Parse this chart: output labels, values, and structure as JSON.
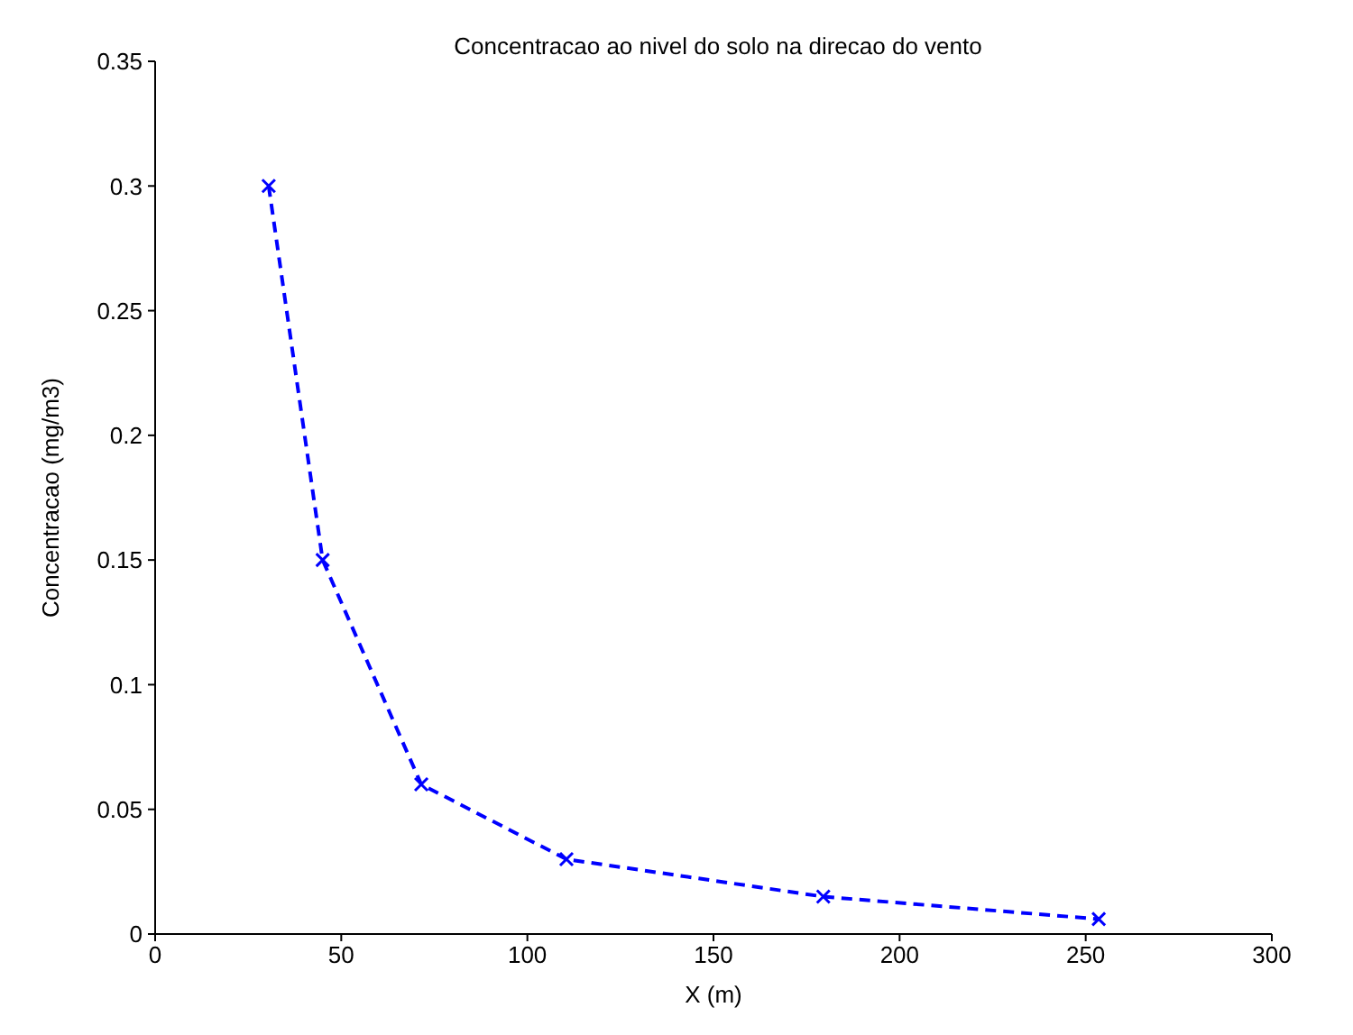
{
  "chart_data": {
    "type": "line",
    "title": "Concentracao ao nivel do solo na direcao do vento",
    "xlabel": "X (m)",
    "ylabel": "Concentracao (mg/m3)",
    "x": [
      30.5,
      45,
      71.5,
      110.5,
      179.5,
      253.5
    ],
    "series": [
      {
        "color": "#0000ff",
        "values": [
          0.3,
          0.15,
          0.06,
          0.03,
          0.015,
          0.006
        ]
      }
    ],
    "xlim": [
      0,
      300
    ],
    "xticks": [
      0,
      50,
      100,
      150,
      200,
      250,
      300
    ],
    "ylim": [
      0,
      0.35
    ],
    "yticks": [
      0,
      0.05,
      0.1,
      0.15,
      0.2,
      0.25,
      0.3,
      0.35
    ],
    "grid": false,
    "legend": false,
    "marker": "cross",
    "line_style": "dashed"
  }
}
